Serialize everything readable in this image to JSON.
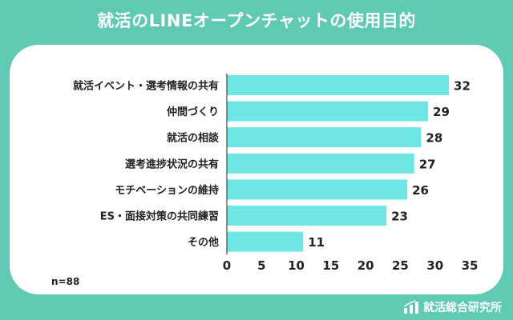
{
  "title": "就活のLINEオープンチャットの使用目的",
  "note": "n=88",
  "brand": {
    "name": "就活総合研究所",
    "icon": "bar-chart-logo-icon"
  },
  "colors": {
    "background": "#5fc9b4",
    "bar": "#6ee6e6",
    "card": "#ffffff"
  },
  "chart_data": {
    "type": "bar",
    "orientation": "horizontal",
    "categories": [
      "就活イベント・選考情報の共有",
      "仲間づくり",
      "就活の相談",
      "選考進捗状況の共有",
      "モチベーションの維持",
      "ES・面接対策の共同練習",
      "その他"
    ],
    "values": [
      32,
      29,
      28,
      27,
      26,
      23,
      11
    ],
    "xlim": [
      0,
      35
    ],
    "xticks": [
      0,
      5,
      10,
      15,
      20,
      25,
      30,
      35
    ],
    "grid": false,
    "data_labels": true
  }
}
